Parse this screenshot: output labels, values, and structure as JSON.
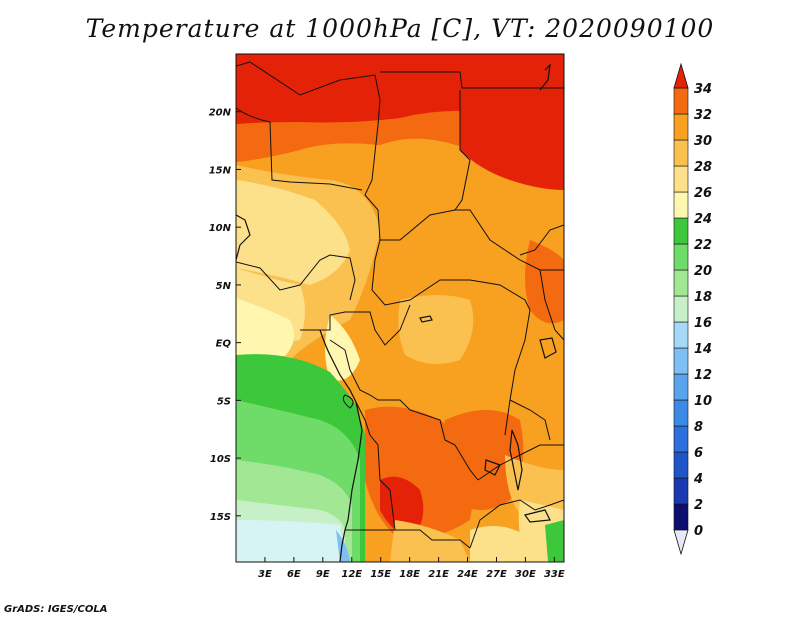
{
  "title": "Temperature at 1000hPa [C], VT: 2020090100",
  "credit": "GrADS: IGES/COLA",
  "map": {
    "lon_range": [
      0,
      34
    ],
    "lat_range": [
      -19,
      25
    ],
    "x_ticks": [
      {
        "value": 3,
        "label": "3E"
      },
      {
        "value": 6,
        "label": "6E"
      },
      {
        "value": 9,
        "label": "9E"
      },
      {
        "value": 12,
        "label": "12E"
      },
      {
        "value": 15,
        "label": "15E"
      },
      {
        "value": 18,
        "label": "18E"
      },
      {
        "value": 21,
        "label": "21E"
      },
      {
        "value": 24,
        "label": "24E"
      },
      {
        "value": 27,
        "label": "27E"
      },
      {
        "value": 30,
        "label": "30E"
      },
      {
        "value": 33,
        "label": "33E"
      }
    ],
    "y_ticks": [
      {
        "value": 20,
        "label": "20N"
      },
      {
        "value": 15,
        "label": "15N"
      },
      {
        "value": 10,
        "label": "10N"
      },
      {
        "value": 5,
        "label": "5N"
      },
      {
        "value": 0,
        "label": "EQ"
      },
      {
        "value": -5,
        "label": "5S"
      },
      {
        "value": -10,
        "label": "10S"
      },
      {
        "value": -15,
        "label": "15S"
      }
    ]
  },
  "colorbar": {
    "levels": [
      "0",
      "2",
      "4",
      "6",
      "8",
      "10",
      "12",
      "14",
      "16",
      "18",
      "20",
      "22",
      "24",
      "26",
      "28",
      "30",
      "32",
      "34"
    ],
    "colors": [
      "#0e0e70",
      "#1a3ab0",
      "#1f55c8",
      "#2d6fdc",
      "#3c8ae6",
      "#5aa4ee",
      "#7ec0f4",
      "#a6d8f8",
      "#c8f0c8",
      "#a2e894",
      "#6fdc6a",
      "#3cc83a",
      "#fff6b0",
      "#fde08a",
      "#fac050",
      "#f8a020",
      "#f46a10",
      "#e42208"
    ]
  }
}
